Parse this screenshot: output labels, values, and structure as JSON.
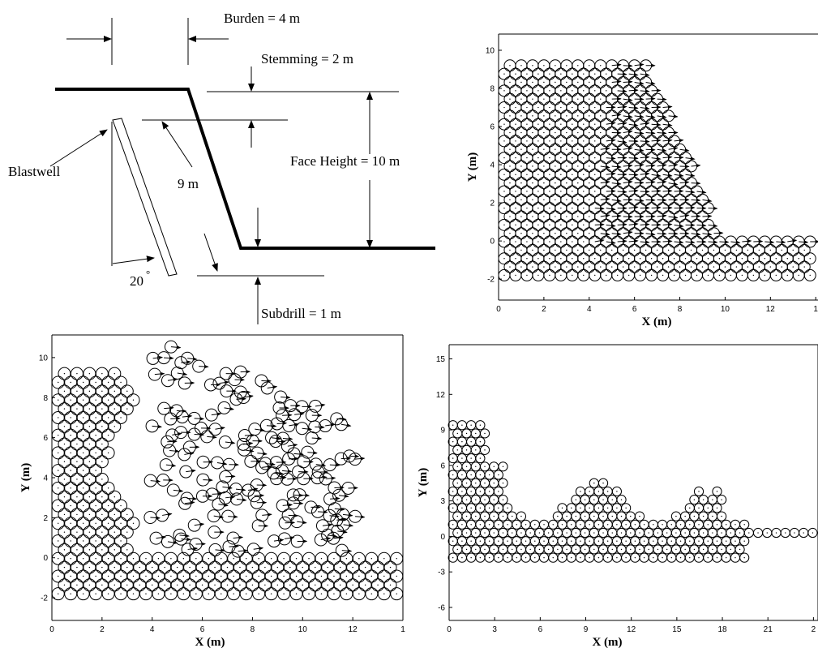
{
  "diagram": {
    "burden": "Burden = 4 m",
    "stemming": "Stemming = 2 m",
    "face_height": "Face Height = 10 m",
    "blastwell": "Blastwell",
    "length": "9 m",
    "angle": "20",
    "angle_unit": "°",
    "subdrill": "Subdrill = 1 m"
  },
  "panels": [
    {
      "xlabel": "X (m)",
      "ylabel": "Y (m)",
      "xlim": [
        0,
        14.1
      ],
      "ylim": [
        -3.1,
        10.85
      ],
      "xticks": [
        0,
        2,
        4,
        6,
        8,
        10,
        12,
        {
          "value": 14,
          "label": "1"
        }
      ],
      "yticks": [
        -2,
        0,
        2,
        4,
        6,
        8,
        10
      ]
    },
    {
      "xlabel": "X (m)",
      "ylabel": "Y (m)",
      "xlim": [
        0,
        14
      ],
      "ylim": [
        -3.13,
        11.13
      ],
      "xticks": [
        0,
        2,
        4,
        6,
        8,
        10,
        12,
        {
          "value": 14,
          "label": "1"
        }
      ],
      "yticks": [
        -2,
        0,
        2,
        4,
        6,
        8,
        10
      ]
    },
    {
      "xlabel": "X (m)",
      "ylabel": "Y (m)",
      "xlim": [
        0,
        24.3
      ],
      "ylim": [
        -7.1,
        16.2
      ],
      "xticks": [
        0,
        3,
        6,
        9,
        12,
        15,
        18,
        21,
        {
          "value": 24,
          "label": "2"
        }
      ],
      "yticks": [
        -6,
        -3,
        0,
        3,
        6,
        9,
        12,
        15
      ]
    }
  ]
}
